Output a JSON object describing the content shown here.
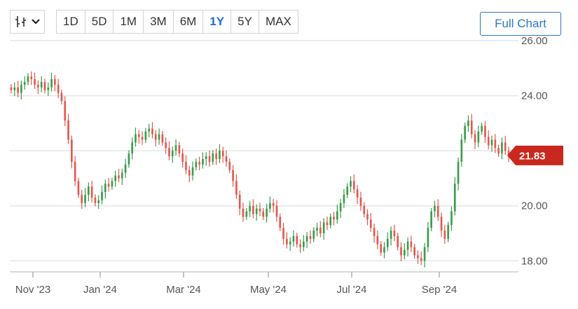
{
  "toolbar": {
    "chart_type_icon": "candlestick-icon",
    "chevron_icon": "chevron-down-icon",
    "ranges": [
      "1D",
      "5D",
      "1M",
      "3M",
      "6M",
      "1Y",
      "5Y",
      "MAX"
    ],
    "active_range": "1Y",
    "full_chart_label": "Full Chart"
  },
  "colors": {
    "up": "#3a9b4a",
    "down": "#e2574c",
    "last_price_bg": "#c8281d",
    "grid": "#e4e6e9",
    "accent": "#2b78c5"
  },
  "chart_data": {
    "type": "candlestick",
    "ylim": [
      17.6,
      26.0
    ],
    "yticks": [
      "26.00",
      "24.00",
      "22.00",
      "20.00",
      "18.00"
    ],
    "ytick_values": [
      26,
      24,
      22,
      20,
      18
    ],
    "xticks": [
      "Nov '23",
      "Jan '24",
      "Mar '24",
      "May '24",
      "Jul '24",
      "Sep '24"
    ],
    "last_price": "21.83",
    "closes": [
      24.2,
      24.3,
      24.1,
      24.4,
      24.5,
      24.7,
      24.6,
      24.4,
      24.3,
      24.5,
      24.2,
      24.3,
      24.6,
      24.4,
      24.1,
      23.8,
      23.1,
      22.4,
      21.6,
      20.9,
      20.4,
      20.1,
      20.4,
      20.7,
      20.3,
      20.1,
      20.2,
      20.5,
      20.8,
      20.7,
      20.9,
      21.1,
      21.0,
      21.2,
      21.5,
      21.9,
      22.3,
      22.6,
      22.5,
      22.4,
      22.7,
      22.8,
      22.6,
      22.4,
      22.6,
      22.3,
      22.1,
      21.8,
      22.0,
      22.2,
      21.9,
      21.6,
      21.3,
      21.1,
      21.4,
      21.6,
      21.5,
      21.7,
      21.8,
      21.6,
      21.9,
      21.7,
      22.0,
      21.8,
      21.6,
      21.3,
      20.9,
      20.4,
      19.9,
      19.6,
      19.8,
      20.0,
      19.7,
      19.9,
      19.8,
      19.6,
      19.9,
      20.1,
      20.0,
      19.6,
      19.2,
      18.8,
      18.6,
      18.7,
      18.9,
      18.6,
      18.5,
      18.7,
      18.9,
      18.8,
      19.1,
      19.2,
      19.0,
      19.4,
      19.3,
      19.6,
      19.5,
      19.8,
      20.1,
      20.4,
      20.7,
      20.9,
      20.6,
      20.3,
      20.0,
      19.7,
      19.5,
      19.2,
      18.9,
      18.6,
      18.3,
      18.5,
      18.8,
      19.1,
      18.9,
      18.5,
      18.2,
      18.4,
      18.7,
      18.5,
      18.2,
      18.1,
      18.0,
      18.5,
      19.2,
      19.8,
      20.0,
      19.6,
      19.1,
      18.8,
      19.3,
      19.8,
      20.8,
      21.6,
      22.4,
      22.9,
      23.1,
      22.6,
      22.3,
      22.7,
      22.9,
      22.5,
      22.2,
      22.4,
      22.1,
      21.9,
      22.3,
      22.0,
      21.83
    ]
  }
}
